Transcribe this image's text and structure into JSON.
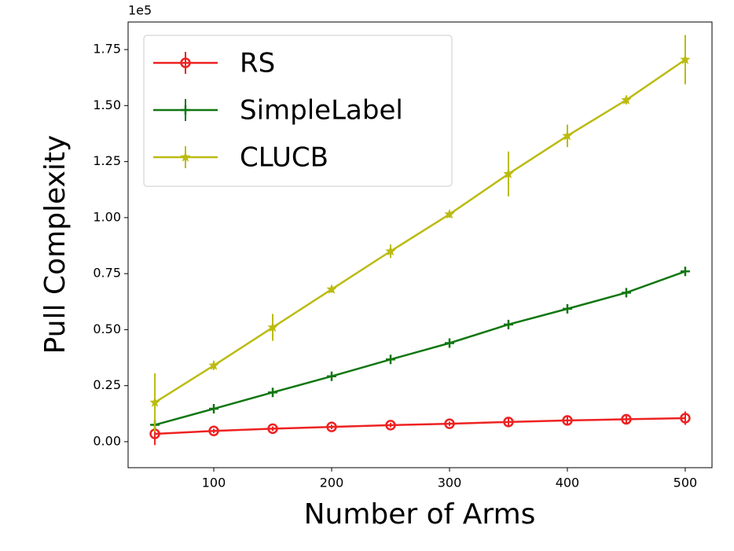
{
  "chart_data": {
    "type": "line",
    "x_label": "Number of Arms",
    "y_label": "Pull Complexity",
    "y_offset_label": "1e5",
    "x": [
      50,
      100,
      150,
      200,
      250,
      300,
      350,
      400,
      450,
      500
    ],
    "series": [
      {
        "name": "RS",
        "color": "#ee2222",
        "marker": "circle",
        "values": [
          0.035,
          0.048,
          0.058,
          0.066,
          0.074,
          0.08,
          0.088,
          0.095,
          0.1,
          0.105
        ],
        "errors": [
          0.05,
          0.01,
          0.01,
          0.01,
          0.01,
          0.01,
          0.02,
          0.02,
          0.02,
          0.03
        ]
      },
      {
        "name": "SimpleLabel",
        "color": "#117711",
        "marker": "plus",
        "values": [
          0.075,
          0.147,
          0.22,
          0.292,
          0.367,
          0.44,
          0.523,
          0.593,
          0.665,
          0.76
        ],
        "errors": [
          0.01,
          0.01,
          0.01,
          0.01,
          0.01,
          0.01,
          0.02,
          0.01,
          0.01,
          0.02
        ]
      },
      {
        "name": "CLUCB",
        "color": "#bbbb11",
        "marker": "star",
        "values": [
          0.175,
          0.34,
          0.51,
          0.68,
          0.85,
          1.015,
          1.195,
          1.365,
          1.525,
          1.705
        ],
        "errors": [
          0.13,
          0.02,
          0.06,
          0.015,
          0.03,
          0.015,
          0.1,
          0.05,
          0.02,
          0.11
        ]
      }
    ],
    "xlim": [
      27.3,
      522.7
    ],
    "xticks": [
      100,
      200,
      300,
      400,
      500
    ],
    "ylim": [
      -0.116,
      1.873
    ],
    "yticks": [
      {
        "value": 0,
        "label": "0.00"
      },
      0.25,
      {
        "value": 0.5,
        "label": "0.50"
      },
      0.75,
      {
        "value": 1,
        "label": "1.00"
      },
      1.25,
      {
        "value": 1.5,
        "label": "1.50"
      },
      1.75
    ],
    "legend": "upper left",
    "grid": false
  }
}
